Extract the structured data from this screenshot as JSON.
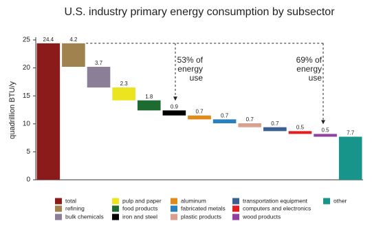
{
  "chart_data": {
    "type": "waterfall",
    "title": "U.S. industry primary energy consumption by subsector",
    "y_label": "quadrillion BTU/y",
    "categories": [
      "total",
      "refining",
      "bulk chemicals",
      "pulp and paper",
      "food products",
      "iron and steel",
      "aluminum",
      "fabricated metals",
      "plastic products",
      "transportation equipment",
      "computers and electronics",
      "wood products",
      "other"
    ],
    "values": [
      24.4,
      4.2,
      3.7,
      2.3,
      1.8,
      0.9,
      0.7,
      0.7,
      0.7,
      0.7,
      0.5,
      0.5,
      7.7
    ],
    "colors": [
      "#8b1a1a",
      "#a0824f",
      "#8a7f96",
      "#ece41e",
      "#1e6b30",
      "#000000",
      "#e08a1a",
      "#2a7fc0",
      "#d9a090",
      "#3a6090",
      "#e02020",
      "#9040a0",
      "#17958a"
    ],
    "ylim": [
      0,
      25
    ],
    "yticks": [
      0,
      5,
      10,
      15,
      20,
      25
    ],
    "annotations": [
      [
        "53% of",
        "energy",
        "use"
      ],
      [
        "69% of",
        "energy",
        "use"
      ]
    ]
  }
}
